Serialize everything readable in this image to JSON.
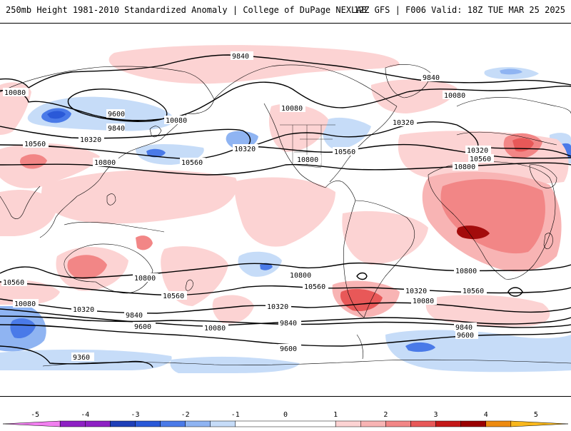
{
  "header": {
    "title_left": "250mb Height 1981-2010 Standardized Anomaly | College of DuPage NEXLAB",
    "title_right": "12Z GFS | F006 Valid: 18Z TUE MAR 25 2025"
  },
  "contour_labels": {
    "nh_9840": "9840",
    "nh_9840_pac": "9840",
    "nh_9840_atl": "9840",
    "nh_9600": "9600",
    "nh_10080_w": "10080",
    "nh_10080_pac": "10080",
    "nh_10080_na": "10080",
    "nh_10080_atl": "10080",
    "nh_10320_asia": "10320",
    "nh_10320_pac": "10320",
    "nh_10320_atl": "10320",
    "nh_10320_eur": "10320",
    "nh_10560_asia": "10560",
    "nh_10560_pac": "10560",
    "nh_10560_na": "10560",
    "nh_10560_afr": "10560",
    "nh_10800_asia": "10800",
    "nh_10800_na": "10800",
    "nh_10800_afr": "10800",
    "sh_10800_aus": "10800",
    "sh_10800_pac": "10800",
    "sh_10800_atl": "10800",
    "sh_10560_w": "10560",
    "sh_10560_aus": "10560",
    "sh_10560_sam": "10560",
    "sh_10560_ind": "10560",
    "sh_10320_w": "10320",
    "sh_10320_pac": "10320",
    "sh_10320_atl": "10320",
    "sh_10080_w": "10080",
    "sh_10080_pac": "10080",
    "sh_10080_atl": "10080",
    "sh_9840_w": "9840",
    "sh_9840_pac": "9840",
    "sh_9840_ind": "9840",
    "sh_9600_w": "9600",
    "sh_9600_sam": "9600",
    "sh_9600_ind": "9600",
    "sh_9360": "9360"
  },
  "colorbar": {
    "ticks": [
      "-5",
      "-4",
      "-3",
      "-2",
      "-1",
      "0",
      "1",
      "2",
      "3",
      "4",
      "5"
    ],
    "bins": [
      {
        "from": -5.5,
        "to": -4.5,
        "color": "#f27ff0"
      },
      {
        "from": -4.5,
        "to": -4,
        "color": "#8e21c4"
      },
      {
        "from": -4,
        "to": -3.5,
        "color": "#8e21c4"
      },
      {
        "from": -3.5,
        "to": -3,
        "color": "#1f3fb8"
      },
      {
        "from": -3,
        "to": -2.5,
        "color": "#2a59d8"
      },
      {
        "from": -2.5,
        "to": -2,
        "color": "#4a7ae8"
      },
      {
        "from": -2,
        "to": -1.5,
        "color": "#8fb4f2"
      },
      {
        "from": -1.5,
        "to": -1,
        "color": "#c6dcf8"
      },
      {
        "from": -1,
        "to": 1,
        "color": "#ffffff"
      },
      {
        "from": 1,
        "to": 1.5,
        "color": "#fcd3d3"
      },
      {
        "from": 1.5,
        "to": 2,
        "color": "#f8b4b4"
      },
      {
        "from": 2,
        "to": 2.5,
        "color": "#f28686"
      },
      {
        "from": 2.5,
        "to": 3,
        "color": "#e85858"
      },
      {
        "from": 3,
        "to": 3.5,
        "color": "#c41818"
      },
      {
        "from": 3.5,
        "to": 4,
        "color": "#9a0000"
      },
      {
        "from": 4,
        "to": 4.5,
        "color": "#ee8b10"
      },
      {
        "from": 4.5,
        "to": 5.5,
        "color": "#f8b71c"
      }
    ]
  },
  "colors": {
    "pos_light": "#fcd3d3",
    "pos_mid": "#f8b4b4",
    "pos_strong": "#f28686",
    "pos_deep": "#e85858",
    "pos_max": "#a30c0c",
    "neg_light": "#c6dcf8",
    "neg_mid": "#8fb4f2",
    "neg_strong": "#4a7ae8",
    "neg_deep": "#2a59d8"
  }
}
